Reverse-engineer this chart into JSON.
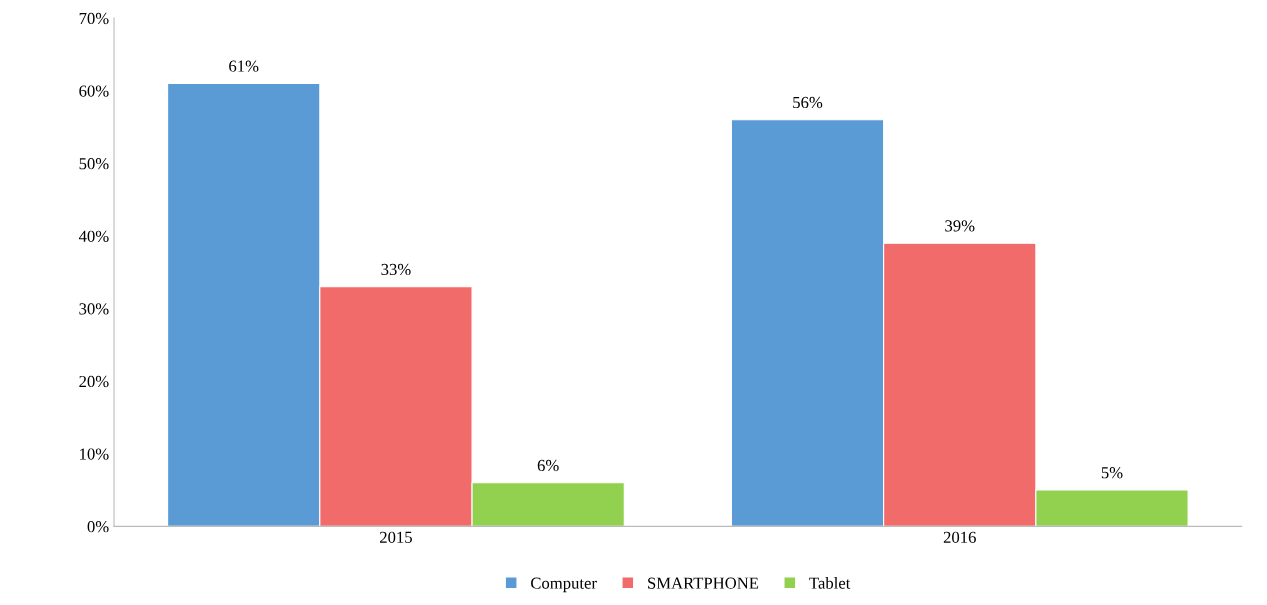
{
  "chart_data": {
    "type": "bar",
    "categories": [
      "2015",
      "2016"
    ],
    "series": [
      {
        "name": "Computer",
        "color": "#5b9bd5",
        "values": [
          61,
          56
        ],
        "value_labels": [
          "61%",
          "56%"
        ]
      },
      {
        "name": "SMARTPHONE",
        "color": "#f26b6b",
        "values": [
          33,
          39
        ],
        "value_labels": [
          "33%",
          "39%"
        ]
      },
      {
        "name": "Tablet",
        "color": "#92d050",
        "values": [
          6,
          5
        ],
        "value_labels": [
          "6%",
          "5%"
        ]
      }
    ],
    "ylim": [
      0,
      70
    ],
    "yticks": [
      {
        "value": 0,
        "label": "0%"
      },
      {
        "value": 10,
        "label": "10%"
      },
      {
        "value": 20,
        "label": "20%"
      },
      {
        "value": 30,
        "label": "30%"
      },
      {
        "value": 40,
        "label": "40%"
      },
      {
        "value": 50,
        "label": "50%"
      },
      {
        "value": 60,
        "label": "60%"
      },
      {
        "value": 70,
        "label": "70%"
      }
    ],
    "grid": false,
    "legend": "bottom"
  }
}
